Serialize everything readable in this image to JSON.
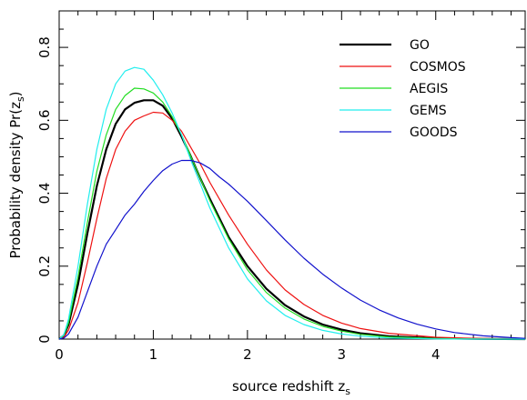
{
  "chart_data": {
    "type": "line",
    "title": "",
    "xlabel_main": "source redshift z",
    "xlabel_sub": "s",
    "ylabel_main": "Probability density Pr(z",
    "ylabel_sub": "s",
    "ylabel_close": ")",
    "xlim": [
      0,
      4.95
    ],
    "ylim": [
      0,
      0.9
    ],
    "x_ticks": [
      "0",
      "1",
      "2",
      "3",
      "4"
    ],
    "y_ticks": [
      "0",
      "0.2",
      "0.4",
      "0.6",
      "0.8"
    ],
    "legend_position": "top-right",
    "series": [
      {
        "name": "GO",
        "color": "#000000",
        "width": 2.2,
        "x": [
          0,
          0.05,
          0.1,
          0.2,
          0.3,
          0.4,
          0.5,
          0.6,
          0.7,
          0.8,
          0.9,
          1.0,
          1.1,
          1.2,
          1.3,
          1.4,
          1.5,
          1.6,
          1.8,
          2.0,
          2.2,
          2.4,
          2.6,
          2.8,
          3.0,
          3.2,
          3.5,
          4.0,
          4.5,
          4.95
        ],
        "y": [
          0,
          0.01,
          0.04,
          0.15,
          0.29,
          0.42,
          0.52,
          0.59,
          0.63,
          0.648,
          0.655,
          0.655,
          0.64,
          0.605,
          0.555,
          0.5,
          0.44,
          0.385,
          0.28,
          0.2,
          0.138,
          0.093,
          0.062,
          0.04,
          0.026,
          0.016,
          0.008,
          0.002,
          0.0005,
          0
        ]
      },
      {
        "name": "COSMOS",
        "color": "#ee1111",
        "width": 1.2,
        "x": [
          0,
          0.05,
          0.1,
          0.2,
          0.3,
          0.4,
          0.5,
          0.6,
          0.7,
          0.8,
          0.9,
          1.0,
          1.1,
          1.2,
          1.3,
          1.4,
          1.5,
          1.6,
          1.8,
          2.0,
          2.2,
          2.4,
          2.6,
          2.8,
          3.0,
          3.2,
          3.5,
          4.0,
          4.5,
          4.95
        ],
        "y": [
          0,
          0.005,
          0.025,
          0.1,
          0.21,
          0.33,
          0.44,
          0.52,
          0.57,
          0.6,
          0.612,
          0.622,
          0.62,
          0.6,
          0.57,
          0.525,
          0.48,
          0.43,
          0.34,
          0.26,
          0.19,
          0.135,
          0.095,
          0.065,
          0.044,
          0.029,
          0.016,
          0.005,
          0.0015,
          0
        ]
      },
      {
        "name": "AEGIS",
        "color": "#22dd22",
        "width": 1.2,
        "x": [
          0,
          0.05,
          0.1,
          0.2,
          0.3,
          0.4,
          0.5,
          0.6,
          0.7,
          0.8,
          0.9,
          1.0,
          1.1,
          1.2,
          1.3,
          1.4,
          1.5,
          1.6,
          1.8,
          2.0,
          2.2,
          2.4,
          2.6,
          2.8,
          3.0,
          3.2,
          3.5,
          4.0,
          4.5,
          4.95
        ],
        "y": [
          0,
          0.01,
          0.045,
          0.17,
          0.32,
          0.46,
          0.56,
          0.63,
          0.668,
          0.688,
          0.686,
          0.675,
          0.65,
          0.61,
          0.56,
          0.5,
          0.44,
          0.38,
          0.275,
          0.19,
          0.128,
          0.085,
          0.055,
          0.035,
          0.022,
          0.013,
          0.006,
          0.0015,
          0.0003,
          0
        ]
      },
      {
        "name": "GEMS",
        "color": "#22eeee",
        "width": 1.2,
        "x": [
          0,
          0.05,
          0.1,
          0.2,
          0.3,
          0.4,
          0.5,
          0.6,
          0.7,
          0.8,
          0.9,
          1.0,
          1.1,
          1.2,
          1.3,
          1.4,
          1.5,
          1.6,
          1.8,
          2.0,
          2.2,
          2.4,
          2.6,
          2.8,
          3.0,
          3.2,
          3.5,
          4.0,
          4.5,
          4.95
        ],
        "y": [
          0,
          0.012,
          0.055,
          0.2,
          0.37,
          0.52,
          0.63,
          0.7,
          0.735,
          0.745,
          0.74,
          0.71,
          0.67,
          0.62,
          0.56,
          0.49,
          0.425,
          0.36,
          0.25,
          0.165,
          0.105,
          0.065,
          0.04,
          0.024,
          0.014,
          0.008,
          0.003,
          0.0006,
          0.0001,
          0
        ]
      },
      {
        "name": "GOODS",
        "color": "#1111cc",
        "width": 1.2,
        "x": [
          0,
          0.05,
          0.1,
          0.2,
          0.3,
          0.4,
          0.5,
          0.6,
          0.7,
          0.8,
          0.9,
          1.0,
          1.1,
          1.2,
          1.3,
          1.4,
          1.5,
          1.6,
          1.7,
          1.8,
          2.0,
          2.2,
          2.4,
          2.6,
          2.8,
          3.0,
          3.2,
          3.4,
          3.6,
          3.8,
          4.0,
          4.2,
          4.5,
          4.8,
          4.95
        ],
        "y": [
          0,
          0.003,
          0.014,
          0.06,
          0.13,
          0.2,
          0.26,
          0.3,
          0.34,
          0.37,
          0.405,
          0.435,
          0.462,
          0.48,
          0.49,
          0.49,
          0.483,
          0.468,
          0.445,
          0.425,
          0.378,
          0.325,
          0.272,
          0.222,
          0.178,
          0.14,
          0.107,
          0.08,
          0.058,
          0.041,
          0.028,
          0.018,
          0.009,
          0.004,
          0.002
        ]
      }
    ]
  }
}
